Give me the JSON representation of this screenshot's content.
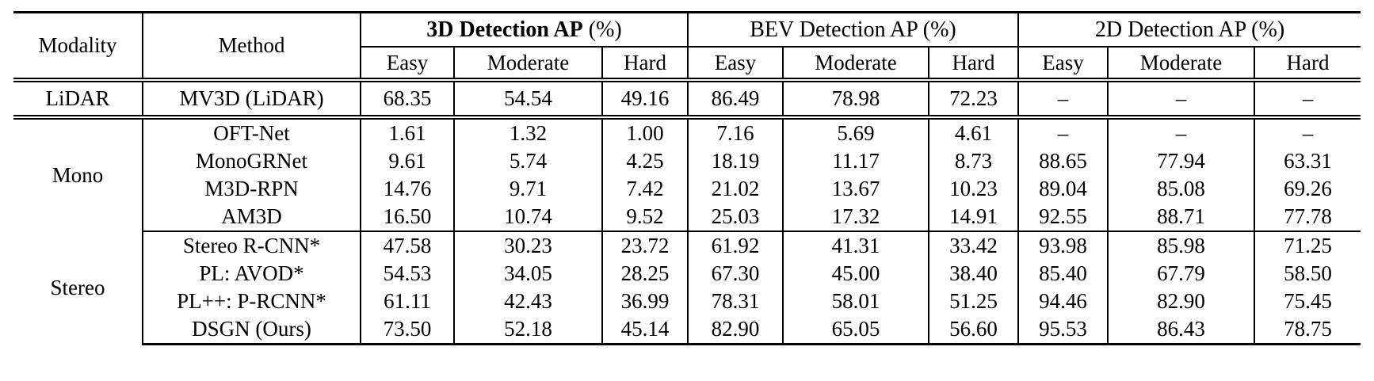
{
  "page": {
    "background_color": "#ffffff",
    "text_color": "#000000"
  },
  "table": {
    "header": {
      "modality_label": "Modality",
      "method_label": "Method",
      "groups": [
        {
          "title": "3D Detection AP",
          "suffix": "(%)",
          "bold_title": true
        },
        {
          "title": "BEV Detection AP",
          "suffix": "(%)",
          "bold_title": false
        },
        {
          "title": "2D Detection AP",
          "suffix": "(%)",
          "bold_title": false
        }
      ],
      "subcolumns": [
        {
          "label": "Easy",
          "bold": false
        },
        {
          "label": "Moderate",
          "bold": true
        },
        {
          "label": "Hard",
          "bold": false
        }
      ]
    },
    "blocks": [
      {
        "modality": "LiDAR",
        "rows": [
          {
            "method": "MV3D (LiDAR)",
            "values": [
              "68.35",
              "54.54",
              "49.16",
              "86.49",
              "78.98",
              "72.23",
              "–",
              "–",
              "–"
            ],
            "bold_indices": []
          }
        ]
      },
      {
        "modality": "Mono",
        "rows": [
          {
            "method": "OFT-Net",
            "values": [
              "1.61",
              "1.32",
              "1.00",
              "7.16",
              "5.69",
              "4.61",
              "–",
              "–",
              "–"
            ],
            "bold_indices": []
          },
          {
            "method": "MonoGRNet",
            "values": [
              "9.61",
              "5.74",
              "4.25",
              "18.19",
              "11.17",
              "8.73",
              "88.65",
              "77.94",
              "63.31"
            ],
            "bold_indices": []
          },
          {
            "method": "M3D-RPN",
            "values": [
              "14.76",
              "9.71",
              "7.42",
              "21.02",
              "13.67",
              "10.23",
              "89.04",
              "85.08",
              "69.26"
            ],
            "bold_indices": []
          },
          {
            "method": "AM3D",
            "values": [
              "16.50",
              "10.74",
              "9.52",
              "25.03",
              "17.32",
              "14.91",
              "92.55",
              "88.71",
              "77.78"
            ],
            "bold_indices": [
              7
            ]
          }
        ]
      },
      {
        "modality": "Stereo",
        "rows": [
          {
            "method": "Stereo R-CNN*",
            "values": [
              "47.58",
              "30.23",
              "23.72",
              "61.92",
              "41.31",
              "33.42",
              "93.98",
              "85.98",
              "71.25"
            ],
            "bold_indices": []
          },
          {
            "method": "PL: AVOD*",
            "values": [
              "54.53",
              "34.05",
              "28.25",
              "67.30",
              "45.00",
              "38.40",
              "85.40",
              "67.79",
              "58.50"
            ],
            "bold_indices": []
          },
          {
            "method": "PL++: P-RCNN*",
            "values": [
              "61.11",
              "42.43",
              "36.99",
              "78.31",
              "58.01",
              "51.25",
              "94.46",
              "82.90",
              "75.45"
            ],
            "bold_indices": []
          },
          {
            "method": "DSGN (Ours)",
            "values": [
              "73.50",
              "52.18",
              "45.14",
              "82.90",
              "65.05",
              "56.60",
              "95.53",
              "86.43",
              "78.75"
            ],
            "bold_indices": [
              0,
              1,
              2,
              3,
              4,
              5,
              6,
              8
            ]
          }
        ]
      }
    ]
  }
}
